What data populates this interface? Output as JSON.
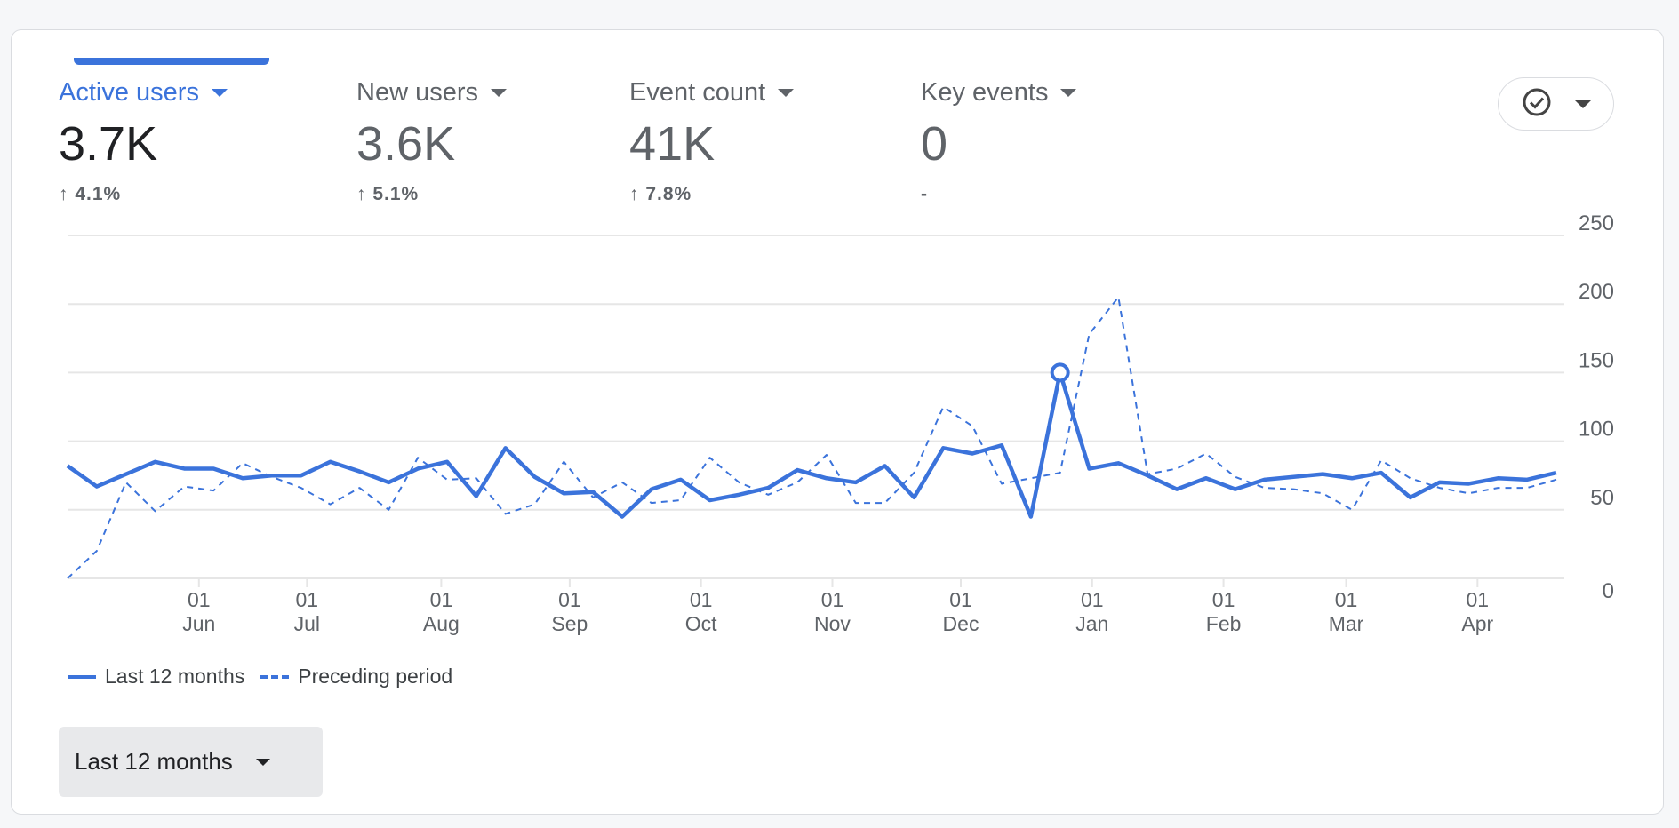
{
  "metrics": [
    {
      "label": "Active users",
      "value": "3.7K",
      "change": "↑ 4.1%",
      "active": true
    },
    {
      "label": "New users",
      "value": "3.6K",
      "change": "↑ 5.1%",
      "active": false
    },
    {
      "label": "Event count",
      "value": "41K",
      "change": "↑ 7.8%",
      "active": false
    },
    {
      "label": "Key events",
      "value": "0",
      "change": "-",
      "active": false
    }
  ],
  "compare_button": {
    "icon": "check-circle-icon"
  },
  "legend": {
    "current": "Last 12 months",
    "previous": "Preceding period"
  },
  "date_range": {
    "label": "Last 12 months"
  },
  "colors": {
    "accent": "#3b73db"
  },
  "chart_data": {
    "type": "line",
    "ylim": [
      0,
      250
    ],
    "yticks": [
      "0",
      "50",
      "100",
      "150",
      "200",
      "250"
    ],
    "xticks": [
      {
        "day": "01",
        "month": "Jun",
        "index": 4.5
      },
      {
        "day": "01",
        "month": "Jul",
        "index": 8.2
      },
      {
        "day": "01",
        "month": "Aug",
        "index": 12.8
      },
      {
        "day": "01",
        "month": "Sep",
        "index": 17.2
      },
      {
        "day": "01",
        "month": "Oct",
        "index": 21.7
      },
      {
        "day": "01",
        "month": "Nov",
        "index": 26.2
      },
      {
        "day": "01",
        "month": "Dec",
        "index": 30.6
      },
      {
        "day": "01",
        "month": "Jan",
        "index": 35.1
      },
      {
        "day": "01",
        "month": "Feb",
        "index": 39.6
      },
      {
        "day": "01",
        "month": "Mar",
        "index": 43.8
      },
      {
        "day": "01",
        "month": "Apr",
        "index": 48.3
      }
    ],
    "series": [
      {
        "name": "Last 12 months",
        "style": "solid",
        "highlight_index": 34,
        "values": [
          82,
          67,
          76,
          85,
          80,
          80,
          73,
          75,
          75,
          85,
          78,
          70,
          80,
          85,
          60,
          95,
          74,
          62,
          63,
          45,
          65,
          72,
          57,
          61,
          66,
          79,
          73,
          70,
          82,
          59,
          95,
          91,
          97,
          45,
          150,
          80,
          84,
          75,
          65,
          73,
          65,
          72,
          74,
          76,
          73,
          77,
          59,
          70,
          69,
          73,
          72,
          77
        ]
      },
      {
        "name": "Preceding period",
        "style": "dashed",
        "values": [
          0,
          20,
          70,
          49,
          67,
          64,
          84,
          74,
          66,
          54,
          66,
          50,
          88,
          72,
          73,
          47,
          54,
          85,
          59,
          70,
          55,
          57,
          88,
          70,
          61,
          70,
          90,
          55,
          55,
          77,
          125,
          111,
          69,
          73,
          77,
          178,
          205,
          76,
          80,
          91,
          74,
          66,
          65,
          62,
          50,
          86,
          73,
          66,
          62,
          66,
          66,
          72
        ]
      }
    ]
  }
}
